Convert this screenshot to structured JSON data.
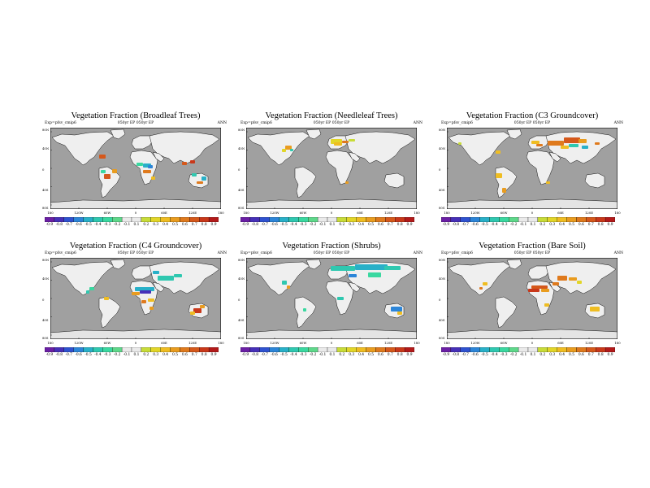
{
  "figure": {
    "panels": [
      {
        "id": "broadleaf",
        "title": "Vegetation Fraction (Broadleaf Trees)",
        "subtitle_left": "Exp=pfsv_cmip6",
        "subtitle_mid": "050yr EP  050yr EP",
        "subtitle_right": "ANN",
        "icon": "broadleaf-map-icon"
      },
      {
        "id": "needleleaf",
        "title": "Vegetation Fraction (Needleleaf Trees)",
        "subtitle_left": "Exp=pfsv_cmip6",
        "subtitle_mid": "050yr EP  050yr EP",
        "subtitle_right": "ANN",
        "icon": "needleleaf-map-icon"
      },
      {
        "id": "c3",
        "title": "Vegetation Fraction (C3 Groundcover)",
        "subtitle_left": "Exp=pfsv_cmip6",
        "subtitle_mid": "050yr EP  050yr EP",
        "subtitle_right": "ANN",
        "icon": "c3-map-icon"
      },
      {
        "id": "c4",
        "title": "Vegetation Fraction (C4 Groundcover)",
        "subtitle_left": "Exp=pfsv_cmip6",
        "subtitle_mid": "050yr EP  050yr EP",
        "subtitle_right": "ANN",
        "icon": "c4-map-icon"
      },
      {
        "id": "shrubs",
        "title": "Vegetation Fraction (Shrubs)",
        "subtitle_left": "Exp=pfsv_cmip6",
        "subtitle_mid": "050yr EP  050yr EP",
        "subtitle_right": "ANN",
        "icon": "shrubs-map-icon"
      },
      {
        "id": "baresoil",
        "title": "Vegetation Fraction (Bare Soil)",
        "subtitle_left": "Exp=pfsv_cmip6",
        "subtitle_mid": "050yr EP  050yr EP",
        "subtitle_right": "ANN",
        "icon": "baresoil-map-icon"
      }
    ],
    "lat_labels": [
      "80N",
      "40N",
      "0",
      "40S",
      "80S"
    ],
    "lon_labels": [
      "180",
      "120W",
      "60W",
      "0",
      "60E",
      "120E",
      "180"
    ],
    "colorbar_labels": [
      "-0.9",
      "-0.8",
      "-0.7",
      "-0.6",
      "-0.5",
      "-0.4",
      "-0.3",
      "-0.2",
      "-0.1",
      "0.1",
      "0.2",
      "0.3",
      "0.4",
      "0.5",
      "0.6",
      "0.7",
      "0.8",
      "0.9"
    ],
    "colors": {
      "ocean": "#a0a0a0",
      "land_neutral": "#efefef",
      "antarctica": "#e4e4e4",
      "colorbar": [
        "#6a1fa5",
        "#4630b8",
        "#2f52d0",
        "#2c85d8",
        "#28b0c8",
        "#2fc8b0",
        "#3ad8a0",
        "#5ed88a",
        "#eaeaea",
        "#eaeaea",
        "#c8dc38",
        "#e2d628",
        "#efbd22",
        "#e99c1f",
        "#df7a1d",
        "#d5581b",
        "#c9381a",
        "#b31a1a"
      ]
    }
  }
}
